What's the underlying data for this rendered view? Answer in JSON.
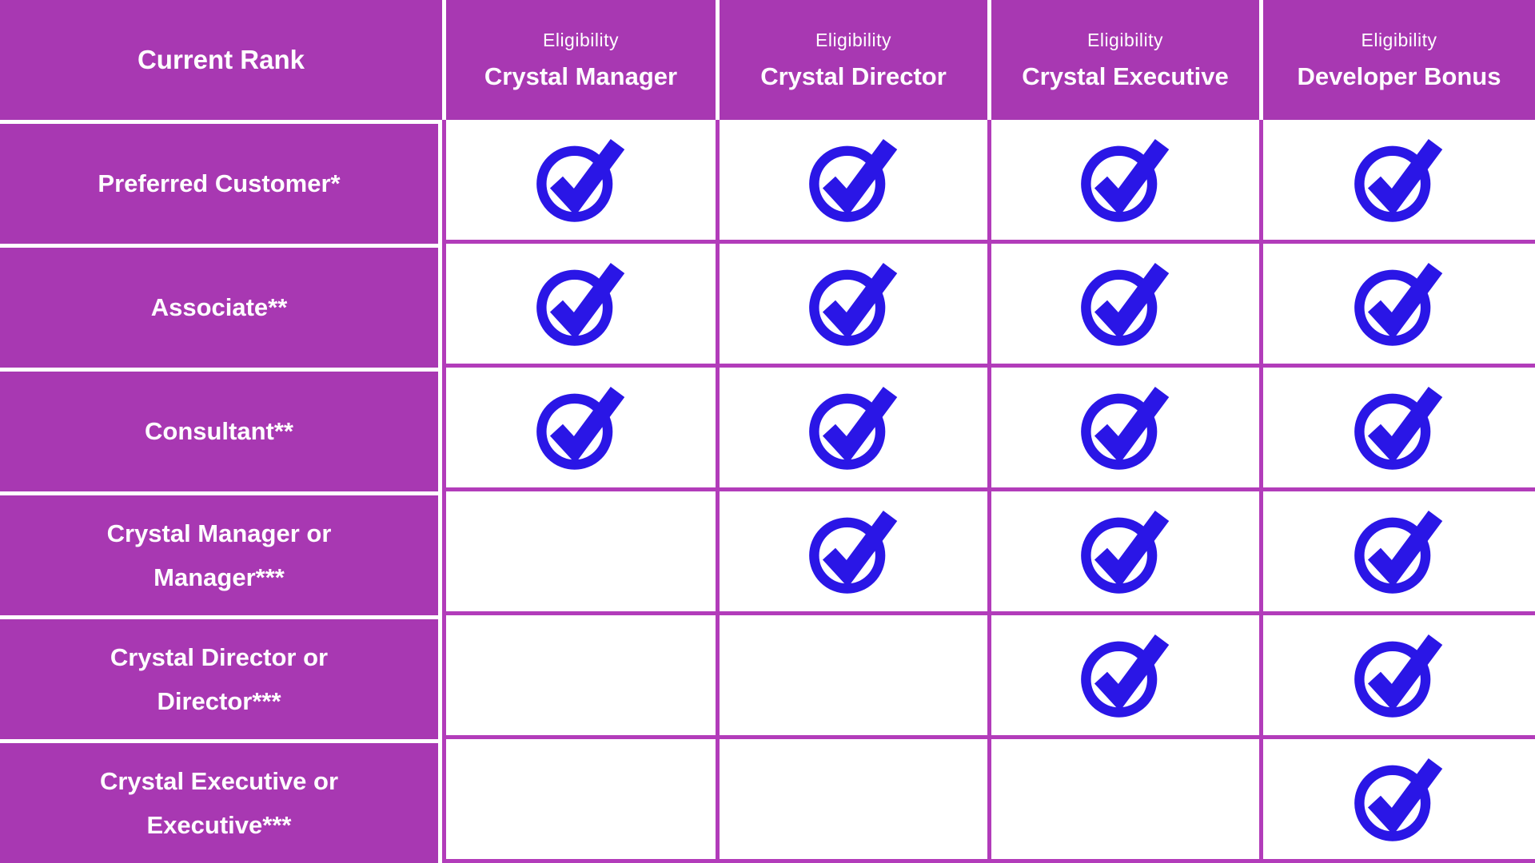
{
  "colors": {
    "header_purple": "#A838B2",
    "grid_line_magenta": "#B23CBA",
    "check_blue": "#2A16E6",
    "cell_white": "#FFFFFF",
    "header_text_white": "#FFFFFF"
  },
  "table": {
    "corner_header": "Current Rank",
    "eligibility_label": "Eligibility",
    "columns": [
      {
        "label": "Crystal Manager"
      },
      {
        "label": "Crystal Director"
      },
      {
        "label": "Crystal Executive"
      },
      {
        "label": "Developer Bonus"
      }
    ],
    "rows": [
      {
        "lines": [
          "Preferred Customer*"
        ],
        "checks": [
          true,
          true,
          true,
          true
        ]
      },
      {
        "lines": [
          "Associate**"
        ],
        "checks": [
          true,
          true,
          true,
          true
        ]
      },
      {
        "lines": [
          "Consultant**"
        ],
        "checks": [
          true,
          true,
          true,
          true
        ]
      },
      {
        "lines": [
          "Crystal Manager or",
          "Manager***"
        ],
        "checks": [
          false,
          true,
          true,
          true
        ]
      },
      {
        "lines": [
          "Crystal Director or",
          "Director***"
        ],
        "checks": [
          false,
          false,
          true,
          true
        ]
      },
      {
        "lines": [
          "Crystal Executive or",
          "Executive***"
        ],
        "checks": [
          false,
          false,
          false,
          true
        ]
      }
    ],
    "check_icon": "circled-checkmark-icon"
  },
  "chart_data": {
    "type": "table",
    "row_header_title": "Current Rank",
    "column_superscript": "Eligibility",
    "columns": [
      "Crystal Manager",
      "Crystal Director",
      "Crystal Executive",
      "Developer Bonus"
    ],
    "rows": [
      {
        "rank": "Preferred Customer*",
        "eligible": [
          true,
          true,
          true,
          true
        ]
      },
      {
        "rank": "Associate**",
        "eligible": [
          true,
          true,
          true,
          true
        ]
      },
      {
        "rank": "Consultant**",
        "eligible": [
          true,
          true,
          true,
          true
        ]
      },
      {
        "rank": "Crystal Manager or Manager***",
        "eligible": [
          false,
          true,
          true,
          true
        ]
      },
      {
        "rank": "Crystal Director or Director***",
        "eligible": [
          false,
          false,
          true,
          true
        ]
      },
      {
        "rank": "Crystal Executive or Executive***",
        "eligible": [
          false,
          false,
          false,
          true
        ]
      }
    ],
    "legend": "checkmark = eligible, blank = not eligible",
    "layout": "header row purple with white dividers; white body cells with magenta grid lines"
  }
}
